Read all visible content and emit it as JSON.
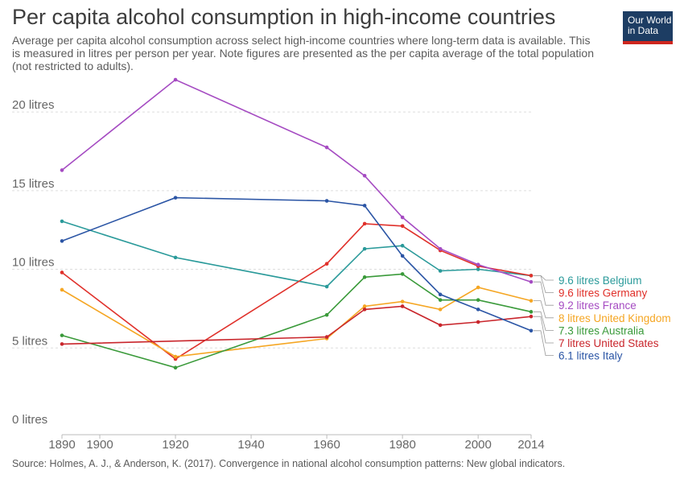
{
  "title": "Per capita alcohol consumption in high-income countries",
  "subtitle": "Average per capita alcohol consumption across select high-income countries where long-term data is available. This is measured in litres per person per year. Note figures are presented as the per capita average of the total population (not restricted to adults).",
  "logo": {
    "line1": "Our World",
    "line2": "in Data",
    "bg": "#1d3d63",
    "accent": "#ce261e"
  },
  "source": "Source: Holmes, A. J., & Anderson, K. (2017). Convergence in national alcohol consumption patterns: New global indicators.",
  "chart_data": {
    "type": "line",
    "title": "Per capita alcohol consumption in high-income countries",
    "xlim": [
      1890,
      2014
    ],
    "ylim": [
      0,
      22
    ],
    "grid": true,
    "legend": "right end labels",
    "x_ticks": [
      {
        "value": 1890,
        "label": "1890"
      },
      {
        "value": 1900,
        "label": "1900"
      },
      {
        "value": 1920,
        "label": "1920"
      },
      {
        "value": 1940,
        "label": "1940"
      },
      {
        "value": 1960,
        "label": "1960"
      },
      {
        "value": 1980,
        "label": "1980"
      },
      {
        "value": 2000,
        "label": "2000"
      },
      {
        "value": 2014,
        "label": "2014"
      }
    ],
    "y_ticks": [
      {
        "value": 0,
        "label": "0 litres"
      },
      {
        "value": 5,
        "label": "5 litres"
      },
      {
        "value": 10,
        "label": "10 litres"
      },
      {
        "value": 15,
        "label": "15 litres"
      },
      {
        "value": 20,
        "label": "20 litres"
      }
    ],
    "x": [
      1890,
      1920,
      1960,
      1970,
      1980,
      1990,
      2000,
      2014
    ],
    "series": [
      {
        "name": "Belgium",
        "end_label": "9.6 litres Belgium",
        "color": "#2a9a9a",
        "values": [
          13.05,
          10.75,
          8.9,
          11.3,
          11.5,
          9.9,
          10.0,
          9.6
        ]
      },
      {
        "name": "Germany",
        "end_label": "9.6 litres Germany",
        "color": "#e0312b",
        "values": [
          9.8,
          4.3,
          10.35,
          12.9,
          12.75,
          11.2,
          10.2,
          9.6
        ]
      },
      {
        "name": "France",
        "end_label": "9.2 litres France",
        "color": "#a54bc2",
        "values": [
          16.3,
          22.05,
          17.75,
          15.95,
          13.3,
          11.3,
          10.3,
          9.2
        ]
      },
      {
        "name": "United Kingdom",
        "end_label": "8 litres United Kingdom",
        "color": "#f5a623",
        "values": [
          8.7,
          4.45,
          5.6,
          7.65,
          7.95,
          7.45,
          8.85,
          8.0
        ]
      },
      {
        "name": "Australia",
        "end_label": "7.3 litres Australia",
        "color": "#3a9a3a",
        "values": [
          5.8,
          3.75,
          7.1,
          9.5,
          9.7,
          8.05,
          8.05,
          7.3
        ]
      },
      {
        "name": "United States",
        "end_label": "7 litres United States",
        "color": "#c9262c",
        "values": [
          5.25,
          null,
          5.7,
          7.45,
          7.65,
          6.45,
          6.65,
          7.0
        ]
      },
      {
        "name": "Italy",
        "end_label": "6.1 litres Italy",
        "color": "#2b55a5",
        "values": [
          11.8,
          14.55,
          14.35,
          14.05,
          10.85,
          8.4,
          7.45,
          6.1
        ]
      }
    ]
  }
}
